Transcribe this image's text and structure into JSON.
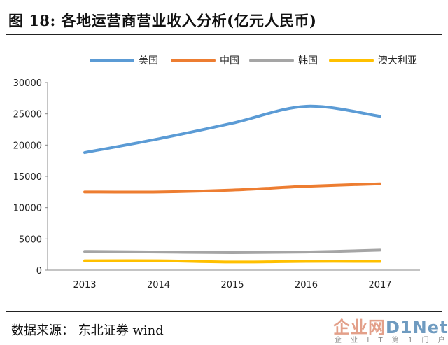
{
  "header": {
    "title": "图  18:  各地运营商营业收入分析(亿元人民币)"
  },
  "footer": {
    "source": "数据来源：  东北证券  wind"
  },
  "watermark": {
    "main_a": "企业网",
    "main_b": "D1Net",
    "sub": "企 业 I T 第 1 门 户"
  },
  "chart_data": {
    "type": "line",
    "title": "图  18:  各地运营商营业收入分析(亿元人民币)",
    "x": [
      "2013",
      "2014",
      "2015",
      "2016",
      "2017"
    ],
    "ylim": [
      0,
      30000
    ],
    "yticks": [
      "0",
      "5000",
      "10000",
      "15000",
      "20000",
      "25000",
      "30000"
    ],
    "grid": false,
    "legend_position": "top-center",
    "series": [
      {
        "name": "美国",
        "color": "#5b9bd5",
        "values": [
          18800,
          21000,
          23500,
          26200,
          24600
        ]
      },
      {
        "name": "中国",
        "color": "#ed7d31",
        "values": [
          12500,
          12500,
          12800,
          13400,
          13800
        ]
      },
      {
        "name": "韩国",
        "color": "#a5a5a5",
        "values": [
          3000,
          2900,
          2800,
          2900,
          3200
        ]
      },
      {
        "name": "澳大利亚",
        "color": "#ffc000",
        "values": [
          1500,
          1500,
          1300,
          1400,
          1400
        ]
      }
    ]
  }
}
